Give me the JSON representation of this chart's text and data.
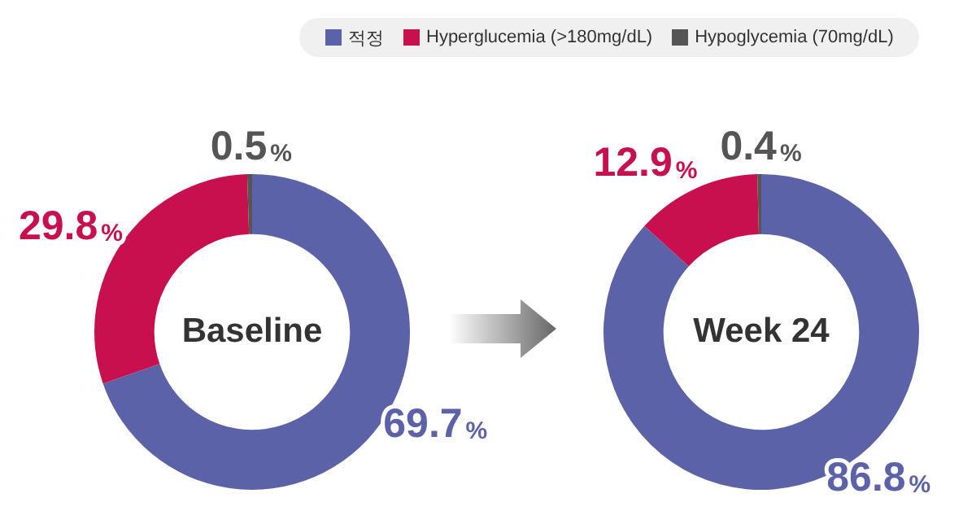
{
  "chart_data": [
    {
      "type": "donut",
      "title": "Baseline",
      "categories": [
        "적정",
        "Hyperglucemia (>180mg/dL)",
        "Hypoglycemia (70mg/dL)"
      ],
      "values": [
        69.7,
        29.8,
        0.5
      ],
      "colors": [
        "#5b62a8",
        "#c8104f",
        "#555555"
      ],
      "value_labels": [
        "69.7%",
        "29.8%",
        "0.5%"
      ],
      "legend": "top"
    },
    {
      "type": "donut",
      "title": "Week 24",
      "categories": [
        null,
        null,
        null
      ],
      "values": [
        86.8,
        12.9,
        0.4
      ],
      "colors": [
        "#5b62a8",
        "#c8104f",
        "#555555"
      ],
      "value_labels": [
        "86.8%",
        "12.9%",
        "0.4%"
      ]
    }
  ]
}
